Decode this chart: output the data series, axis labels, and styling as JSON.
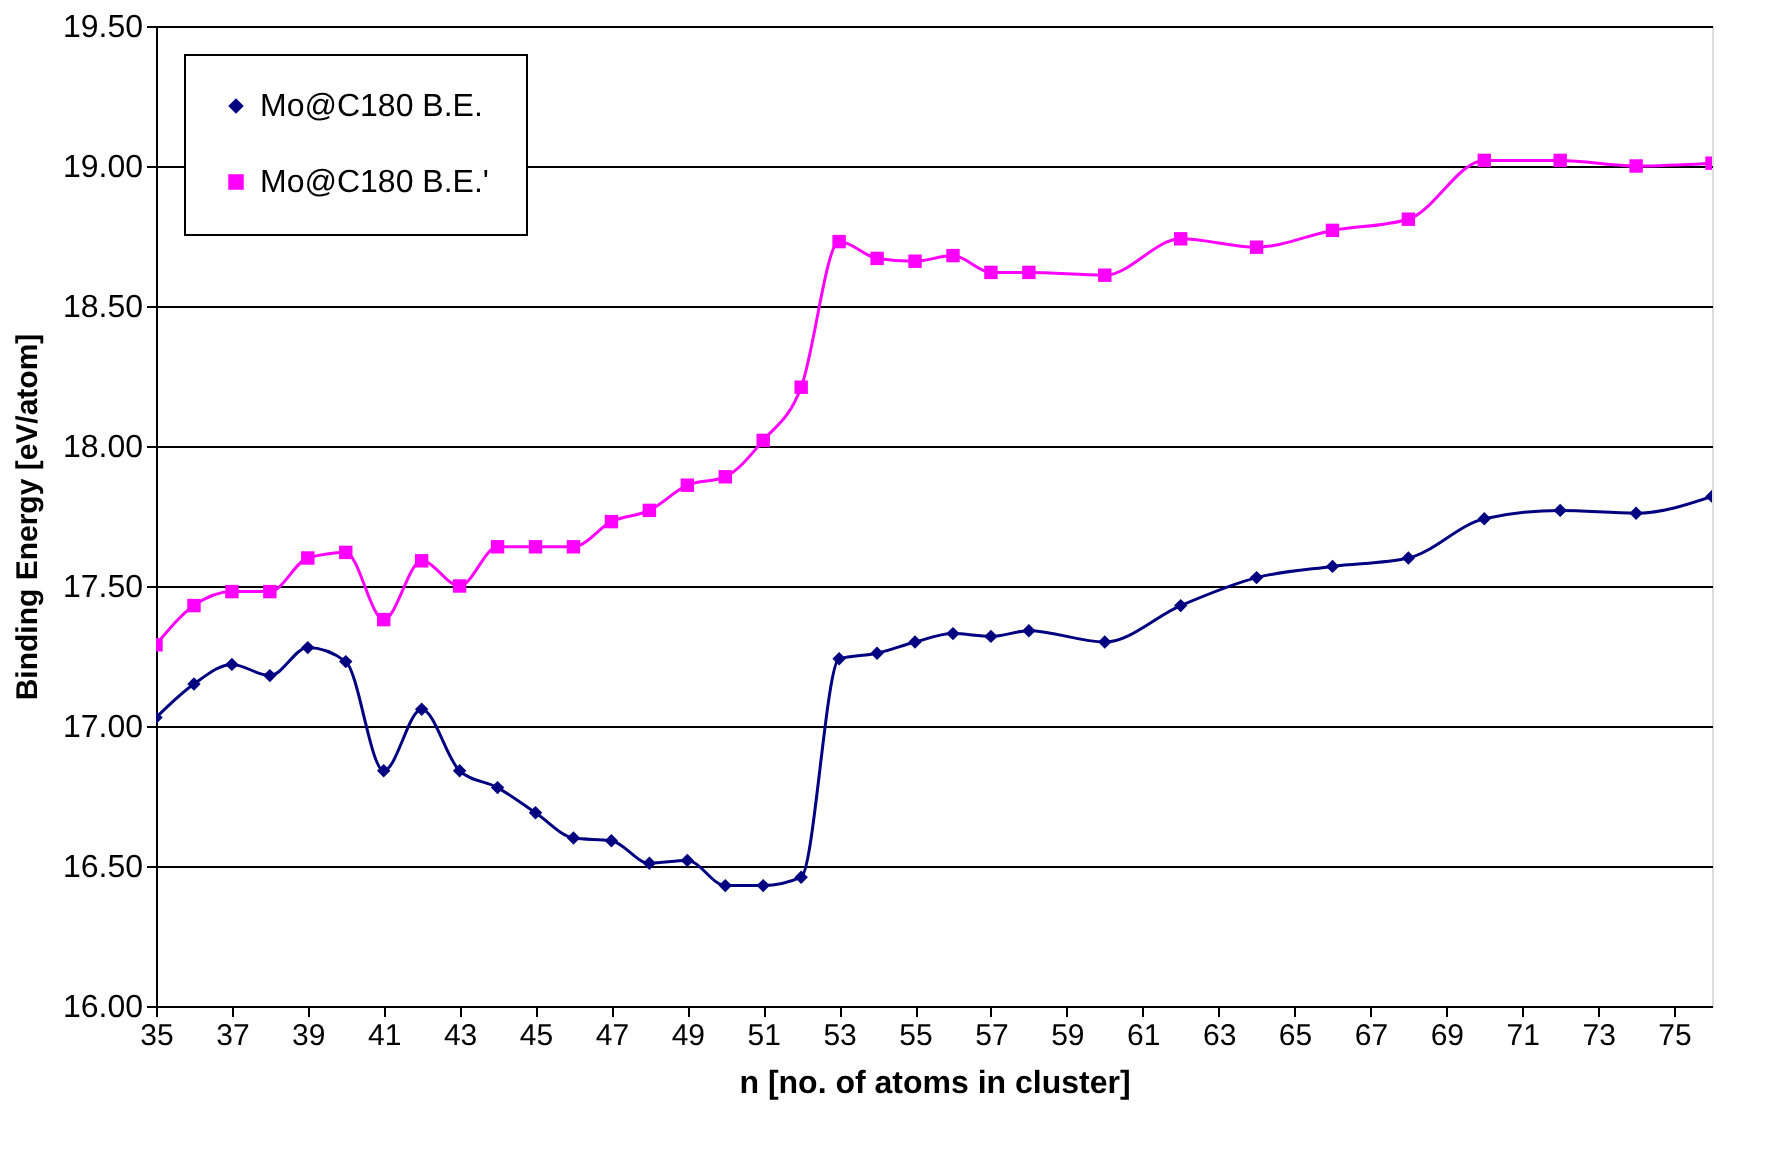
{
  "chart_data": {
    "type": "line",
    "xlabel": "n [no. of atoms in cluster]",
    "ylabel": "Binding Energy [eV/atom]",
    "xlim": [
      35,
      76
    ],
    "xticks": [
      35,
      37,
      39,
      41,
      43,
      45,
      47,
      49,
      51,
      53,
      55,
      57,
      59,
      61,
      63,
      65,
      67,
      69,
      71,
      73,
      75
    ],
    "ylim": [
      16,
      19.5
    ],
    "yticks": [
      {
        "value": 16,
        "label": "16.00"
      },
      {
        "value": 16.5,
        "label": "16.50"
      },
      {
        "value": 17,
        "label": "17.00"
      },
      {
        "value": 17.5,
        "label": "17.50"
      },
      {
        "value": 18,
        "label": "18.00"
      },
      {
        "value": 18.5,
        "label": "18.50"
      },
      {
        "value": 19,
        "label": "19.00"
      },
      {
        "value": 19.5,
        "label": "19.50"
      }
    ],
    "grid": "y",
    "legend": "top left",
    "line_style": "solid",
    "series": [
      {
        "name": "Mo@C180 B.E.",
        "color": "#000080",
        "marker": "diamond",
        "x": [
          35,
          36,
          37,
          38,
          39,
          40,
          41,
          42,
          43,
          44,
          45,
          46,
          47,
          48,
          49,
          50,
          51,
          52,
          53,
          54,
          55,
          56,
          57,
          58,
          60,
          62,
          64,
          66,
          68,
          70,
          72,
          74,
          76
        ],
        "values": [
          17.03,
          17.15,
          17.22,
          17.18,
          17.28,
          17.23,
          16.84,
          17.06,
          16.84,
          16.78,
          16.69,
          16.6,
          16.59,
          16.51,
          16.52,
          16.43,
          16.43,
          16.46,
          17.24,
          17.26,
          17.3,
          17.33,
          17.32,
          17.34,
          17.3,
          17.43,
          17.53,
          17.57,
          17.6,
          17.74,
          17.77,
          17.76,
          17.82
        ]
      },
      {
        "name": "Mo@C180 B.E.'",
        "color": "#ff00ff",
        "marker": "square",
        "x": [
          35,
          36,
          37,
          38,
          39,
          40,
          41,
          42,
          43,
          44,
          45,
          46,
          47,
          48,
          49,
          50,
          51,
          52,
          53,
          54,
          55,
          56,
          57,
          58,
          60,
          62,
          64,
          66,
          68,
          70,
          72,
          74,
          76
        ],
        "values": [
          17.29,
          17.43,
          17.48,
          17.48,
          17.6,
          17.62,
          17.38,
          17.59,
          17.5,
          17.64,
          17.64,
          17.64,
          17.73,
          17.77,
          17.86,
          17.89,
          18.02,
          18.21,
          18.73,
          18.67,
          18.66,
          18.68,
          18.62,
          18.62,
          18.61,
          18.74,
          18.71,
          18.77,
          18.81,
          19.02,
          19.02,
          19.0,
          19.01
        ]
      }
    ]
  }
}
